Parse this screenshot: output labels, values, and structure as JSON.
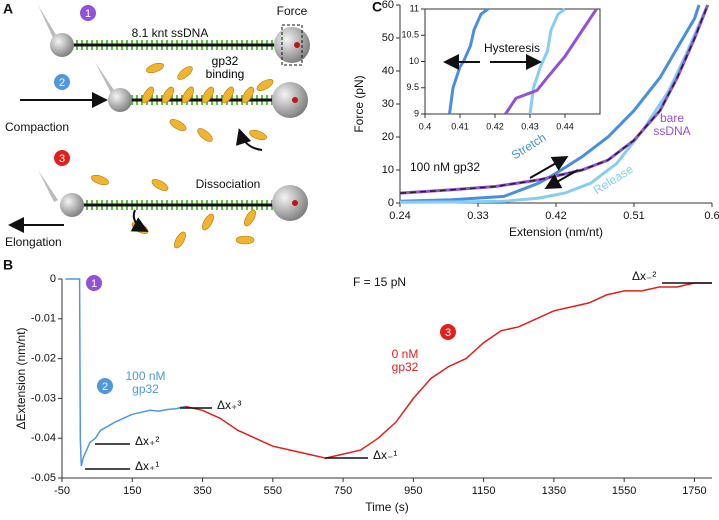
{
  "panel_labels": [
    "A",
    "B",
    "C"
  ],
  "diagram": {
    "steps": [
      "1",
      "2",
      "3"
    ],
    "dna_label": "8.1 knt ssDNA",
    "force_label": "Force",
    "binding_label": "gp32 binding",
    "compaction_label": "Compaction",
    "dissociation_label": "Dissociation",
    "elongation_label": "Elongation"
  },
  "chart_data": [
    {
      "type": "line",
      "xlabel": "Time (s)",
      "ylabel": "ΔExtension (nm/nt)",
      "xlim": [
        -50,
        1800
      ],
      "xticks": [
        -50,
        150,
        350,
        550,
        750,
        950,
        1150,
        1350,
        1550,
        1750
      ],
      "ylim": [
        -0.05,
        0
      ],
      "yticks": [
        0,
        -0.01,
        -0.02,
        -0.03,
        -0.04,
        -0.05
      ],
      "markers": [
        "1",
        "2",
        "3"
      ],
      "annotations": [
        "F = 15 pN",
        "100 nM gp32",
        "0 nM gp32",
        "Δx₊¹",
        "Δx₊²",
        "Δx₊³",
        "Δx₋¹",
        "Δx₋²"
      ],
      "series": [
        {
          "color": "#4f97e0",
          "x": [
            -40,
            -20,
            -5,
            0,
            2,
            5,
            10,
            20,
            30,
            45,
            60,
            80,
            100,
            125,
            150,
            175,
            200,
            225,
            250,
            275,
            300
          ],
          "values": [
            0,
            0,
            0,
            0,
            -0.04,
            -0.047,
            -0.045,
            -0.043,
            -0.041,
            -0.04,
            -0.038,
            -0.037,
            -0.036,
            -0.035,
            -0.034,
            -0.0335,
            -0.033,
            -0.0332,
            -0.0328,
            -0.0326,
            -0.032
          ]
        },
        {
          "color": "#e0201c",
          "x": [
            300,
            350,
            400,
            450,
            500,
            550,
            600,
            650,
            700,
            750,
            800,
            850,
            900,
            950,
            1000,
            1050,
            1100,
            1150,
            1200,
            1250,
            1300,
            1350,
            1400,
            1450,
            1500,
            1550,
            1600,
            1650,
            1700,
            1750,
            1800
          ],
          "values": [
            -0.032,
            -0.033,
            -0.035,
            -0.038,
            -0.04,
            -0.042,
            -0.043,
            -0.044,
            -0.045,
            -0.044,
            -0.043,
            -0.04,
            -0.036,
            -0.03,
            -0.025,
            -0.022,
            -0.02,
            -0.016,
            -0.013,
            -0.012,
            -0.01,
            -0.008,
            -0.007,
            -0.006,
            -0.004,
            -0.003,
            -0.003,
            -0.002,
            -0.002,
            -0.001,
            -0.001
          ]
        }
      ]
    },
    {
      "type": "line",
      "xlabel": "Extension (nm/nt)",
      "ylabel": "Force (pN)",
      "xlim": [
        0.24,
        0.6
      ],
      "xticks": [
        0.24,
        0.33,
        0.42,
        0.51,
        0.6
      ],
      "ylim": [
        0,
        60
      ],
      "yticks": [
        0,
        10,
        20,
        30,
        40,
        50,
        60
      ],
      "annotations": [
        "100 nM gp32"
      ],
      "series": [
        {
          "name": "Stretch",
          "color": "#4a8fdc",
          "x": [
            0.24,
            0.3,
            0.36,
            0.38,
            0.4,
            0.42,
            0.45,
            0.48,
            0.51,
            0.54,
            0.56,
            0.58,
            0.585
          ],
          "values": [
            0.5,
            1,
            2,
            4,
            6,
            9,
            14,
            20,
            28,
            38,
            47,
            56,
            60
          ]
        },
        {
          "name": "Release",
          "color": "#86cdef",
          "x": [
            0.24,
            0.3,
            0.36,
            0.4,
            0.43,
            0.46,
            0.49,
            0.52,
            0.55,
            0.57,
            0.59,
            0.595
          ],
          "values": [
            0.2,
            0.3,
            0.5,
            1.5,
            3,
            6,
            12,
            22,
            34,
            45,
            57,
            60
          ]
        },
        {
          "name": "bare ssDNA",
          "color": "#9152d6",
          "x": [
            0.24,
            0.3,
            0.35,
            0.4,
            0.45,
            0.48,
            0.51,
            0.54,
            0.56,
            0.58,
            0.595
          ],
          "values": [
            3,
            4,
            5,
            7,
            10,
            13,
            19,
            28,
            38,
            50,
            60
          ]
        },
        {
          "color": "#222222",
          "dash": true,
          "x": [
            0.24,
            0.3,
            0.35,
            0.4,
            0.45,
            0.48,
            0.51,
            0.54,
            0.56,
            0.58,
            0.595
          ],
          "values": [
            3,
            4,
            5,
            7,
            10,
            13,
            19,
            28,
            38,
            50,
            60
          ]
        }
      ]
    },
    {
      "type": "line",
      "xlim": [
        0.4,
        0.45
      ],
      "xticks": [
        0.4,
        0.41,
        0.42,
        0.43,
        0.44
      ],
      "ylim": [
        9,
        11
      ],
      "yticks": [
        9,
        9.5,
        10,
        10.5,
        11
      ],
      "annotations": [
        "Hysteresis"
      ],
      "series": [
        {
          "color": "#4a8fdc",
          "x": [
            0.407,
            0.408,
            0.41,
            0.411,
            0.413,
            0.414,
            0.416,
            0.418
          ],
          "values": [
            9,
            9.5,
            9.9,
            10,
            10.3,
            10.6,
            10.9,
            11
          ]
        },
        {
          "color": "#86cdef",
          "x": [
            0.43,
            0.431,
            0.433,
            0.435,
            0.436,
            0.438,
            0.44
          ],
          "values": [
            9,
            9.5,
            9.9,
            10.2,
            10.6,
            10.9,
            11
          ]
        },
        {
          "color": "#9152d6",
          "x": [
            0.423,
            0.426,
            0.432,
            0.435,
            0.44,
            0.445,
            0.449
          ],
          "values": [
            9,
            9.3,
            9.45,
            9.7,
            10.1,
            10.6,
            11
          ]
        }
      ]
    }
  ]
}
